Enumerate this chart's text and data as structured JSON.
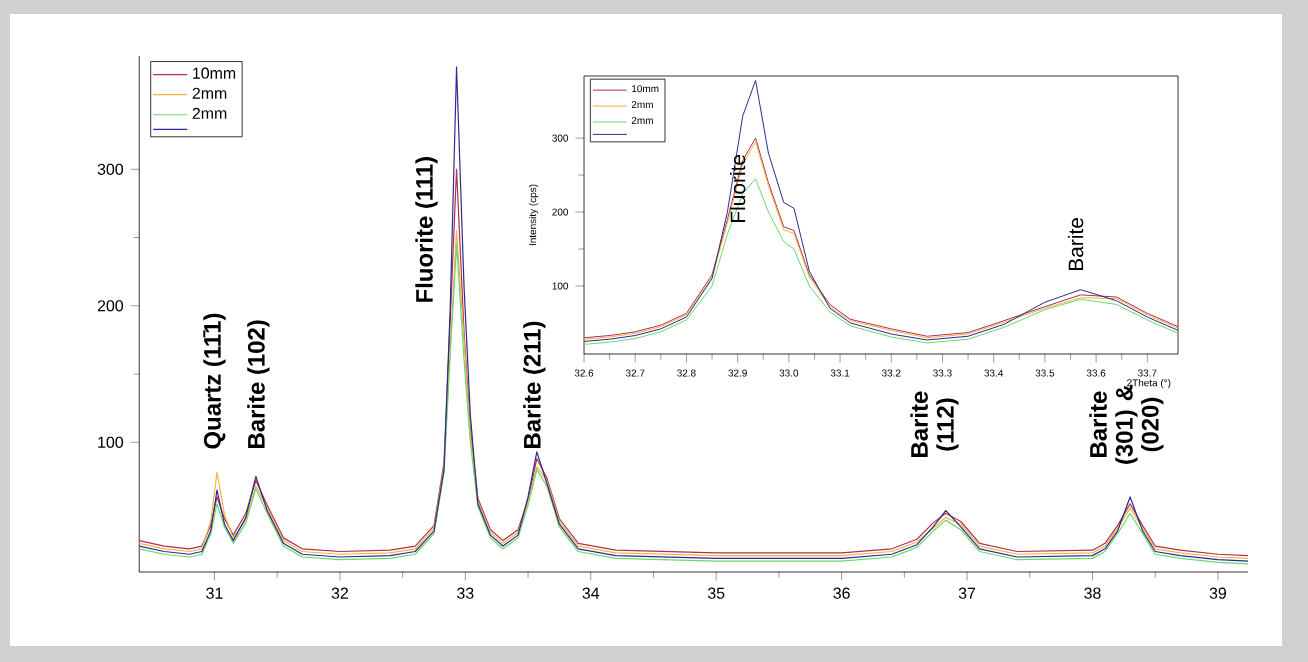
{
  "chart_data": [
    {
      "type": "line",
      "x": [
        30.4,
        30.6,
        30.8,
        30.9,
        30.97,
        31.02,
        31.08,
        31.15,
        31.25,
        31.33,
        31.42,
        31.55,
        31.7,
        32.0,
        32.4,
        32.6,
        32.75,
        32.83,
        32.88,
        32.93,
        32.99,
        33.04,
        33.1,
        33.2,
        33.3,
        33.42,
        33.5,
        33.57,
        33.65,
        33.75,
        33.9,
        34.2,
        35.0,
        36.0,
        36.4,
        36.6,
        36.73,
        36.83,
        36.95,
        37.1,
        37.4,
        38.0,
        38.1,
        38.2,
        38.3,
        38.4,
        38.5,
        38.7,
        39.0,
        39.24
      ],
      "series": [
        {
          "name": "10mm",
          "color": "#b0304a",
          "values": [
            28,
            24,
            22,
            24,
            39,
            60,
            44,
            32,
            48,
            72,
            54,
            30,
            22,
            20,
            21,
            24,
            39,
            85,
            190,
            300,
            180,
            110,
            59,
            36,
            28,
            36,
            58,
            88,
            74,
            44,
            26,
            21,
            19,
            19,
            22,
            29,
            41,
            48,
            42,
            26,
            20,
            21,
            26,
            39,
            55,
            39,
            24,
            21,
            18,
            17
          ]
        },
        {
          "name": "2mm",
          "color": "#f2b24a",
          "values": [
            26,
            22,
            20,
            22,
            42,
            78,
            47,
            30,
            43,
            68,
            52,
            28,
            20,
            18,
            19,
            22,
            37,
            82,
            170,
            255,
            175,
            105,
            57,
            34,
            26,
            34,
            56,
            82,
            72,
            42,
            24,
            19,
            17,
            17,
            20,
            27,
            37,
            45,
            40,
            24,
            18,
            19,
            24,
            37,
            52,
            37,
            22,
            19,
            16,
            15
          ]
        },
        {
          "name": "2mm",
          "color": "#6ad86a",
          "values": [
            22,
            18,
            16,
            18,
            33,
            55,
            38,
            26,
            41,
            66,
            48,
            24,
            16,
            14,
            15,
            18,
            33,
            78,
            165,
            245,
            160,
            100,
            53,
            30,
            22,
            30,
            54,
            80,
            68,
            38,
            20,
            15,
            13,
            13,
            16,
            23,
            35,
            43,
            36,
            20,
            14,
            15,
            20,
            33,
            48,
            33,
            18,
            15,
            12,
            11
          ]
        },
        {
          "color": "#2b2b8f",
          "values": [
            24,
            20,
            18,
            20,
            35,
            65,
            40,
            28,
            45,
            75,
            50,
            26,
            18,
            16,
            17,
            20,
            35,
            80,
            200,
            375,
            213,
            120,
            55,
            32,
            24,
            32,
            60,
            93,
            70,
            40,
            22,
            17,
            15,
            15,
            18,
            25,
            38,
            50,
            38,
            22,
            16,
            17,
            22,
            35,
            60,
            35,
            20,
            17,
            14,
            13
          ]
        }
      ],
      "xlim": [
        30.4,
        39.24
      ],
      "ylim": [
        5,
        383
      ],
      "xticks": [
        31,
        32,
        33,
        34,
        35,
        36,
        37,
        38,
        39
      ],
      "yticks": [
        100,
        200,
        300
      ],
      "legend": "top left",
      "marker": "none",
      "line_style": "solid",
      "annotations": [
        "Quartz (11̄1)",
        "Barite (102)",
        "Fluorite (111)",
        "Barite (211)",
        "Barite (112)",
        "Barite (301) & (020)"
      ]
    },
    {
      "type": "line",
      "x": [
        32.6,
        32.65,
        32.7,
        32.75,
        32.8,
        32.85,
        32.88,
        32.91,
        32.935,
        32.96,
        32.99,
        33.01,
        33.04,
        33.08,
        33.12,
        33.2,
        33.27,
        33.35,
        33.42,
        33.5,
        33.57,
        33.64,
        33.7,
        33.76
      ],
      "series": [
        {
          "name": "10mm",
          "color": "#b0304a",
          "values": [
            30,
            33,
            38,
            47,
            63,
            115,
            190,
            270,
            300,
            240,
            180,
            175,
            115,
            75,
            55,
            42,
            32,
            37,
            53,
            72,
            88,
            85,
            63,
            45
          ]
        },
        {
          "name": "2mm",
          "color": "#f2b24a",
          "values": [
            28,
            31,
            36,
            45,
            61,
            112,
            185,
            265,
            295,
            236,
            176,
            171,
            112,
            72,
            53,
            40,
            30,
            35,
            51,
            70,
            84,
            83,
            61,
            43
          ]
        },
        {
          "name": "2mm",
          "color": "#6ad86a",
          "values": [
            21,
            24,
            29,
            38,
            54,
            100,
            170,
            225,
            245,
            200,
            160,
            150,
            100,
            65,
            46,
            31,
            23,
            28,
            44,
            68,
            82,
            75,
            54,
            36
          ]
        },
        {
          "color": "#2b2b8f",
          "values": [
            25,
            28,
            33,
            42,
            58,
            110,
            200,
            330,
            378,
            280,
            213,
            205,
            120,
            70,
            50,
            35,
            27,
            32,
            48,
            78,
            95,
            80,
            58,
            40
          ]
        }
      ],
      "xlim": [
        32.6,
        33.76
      ],
      "ylim": [
        8,
        384
      ],
      "xticks": [
        32.6,
        32.7,
        32.8,
        32.9,
        {
          "value": 33,
          "label": "33.0"
        },
        33.1,
        33.2,
        33.3,
        33.4,
        33.5,
        33.6,
        33.7
      ],
      "yticks": [
        100,
        200,
        300
      ],
      "xlabel": "2Theta (°)",
      "ylabel": "Intensity (cps)",
      "legend": "top left",
      "marker": "none",
      "line_style": "solid",
      "annotations": [
        "Fluorite",
        "Barite"
      ]
    }
  ]
}
